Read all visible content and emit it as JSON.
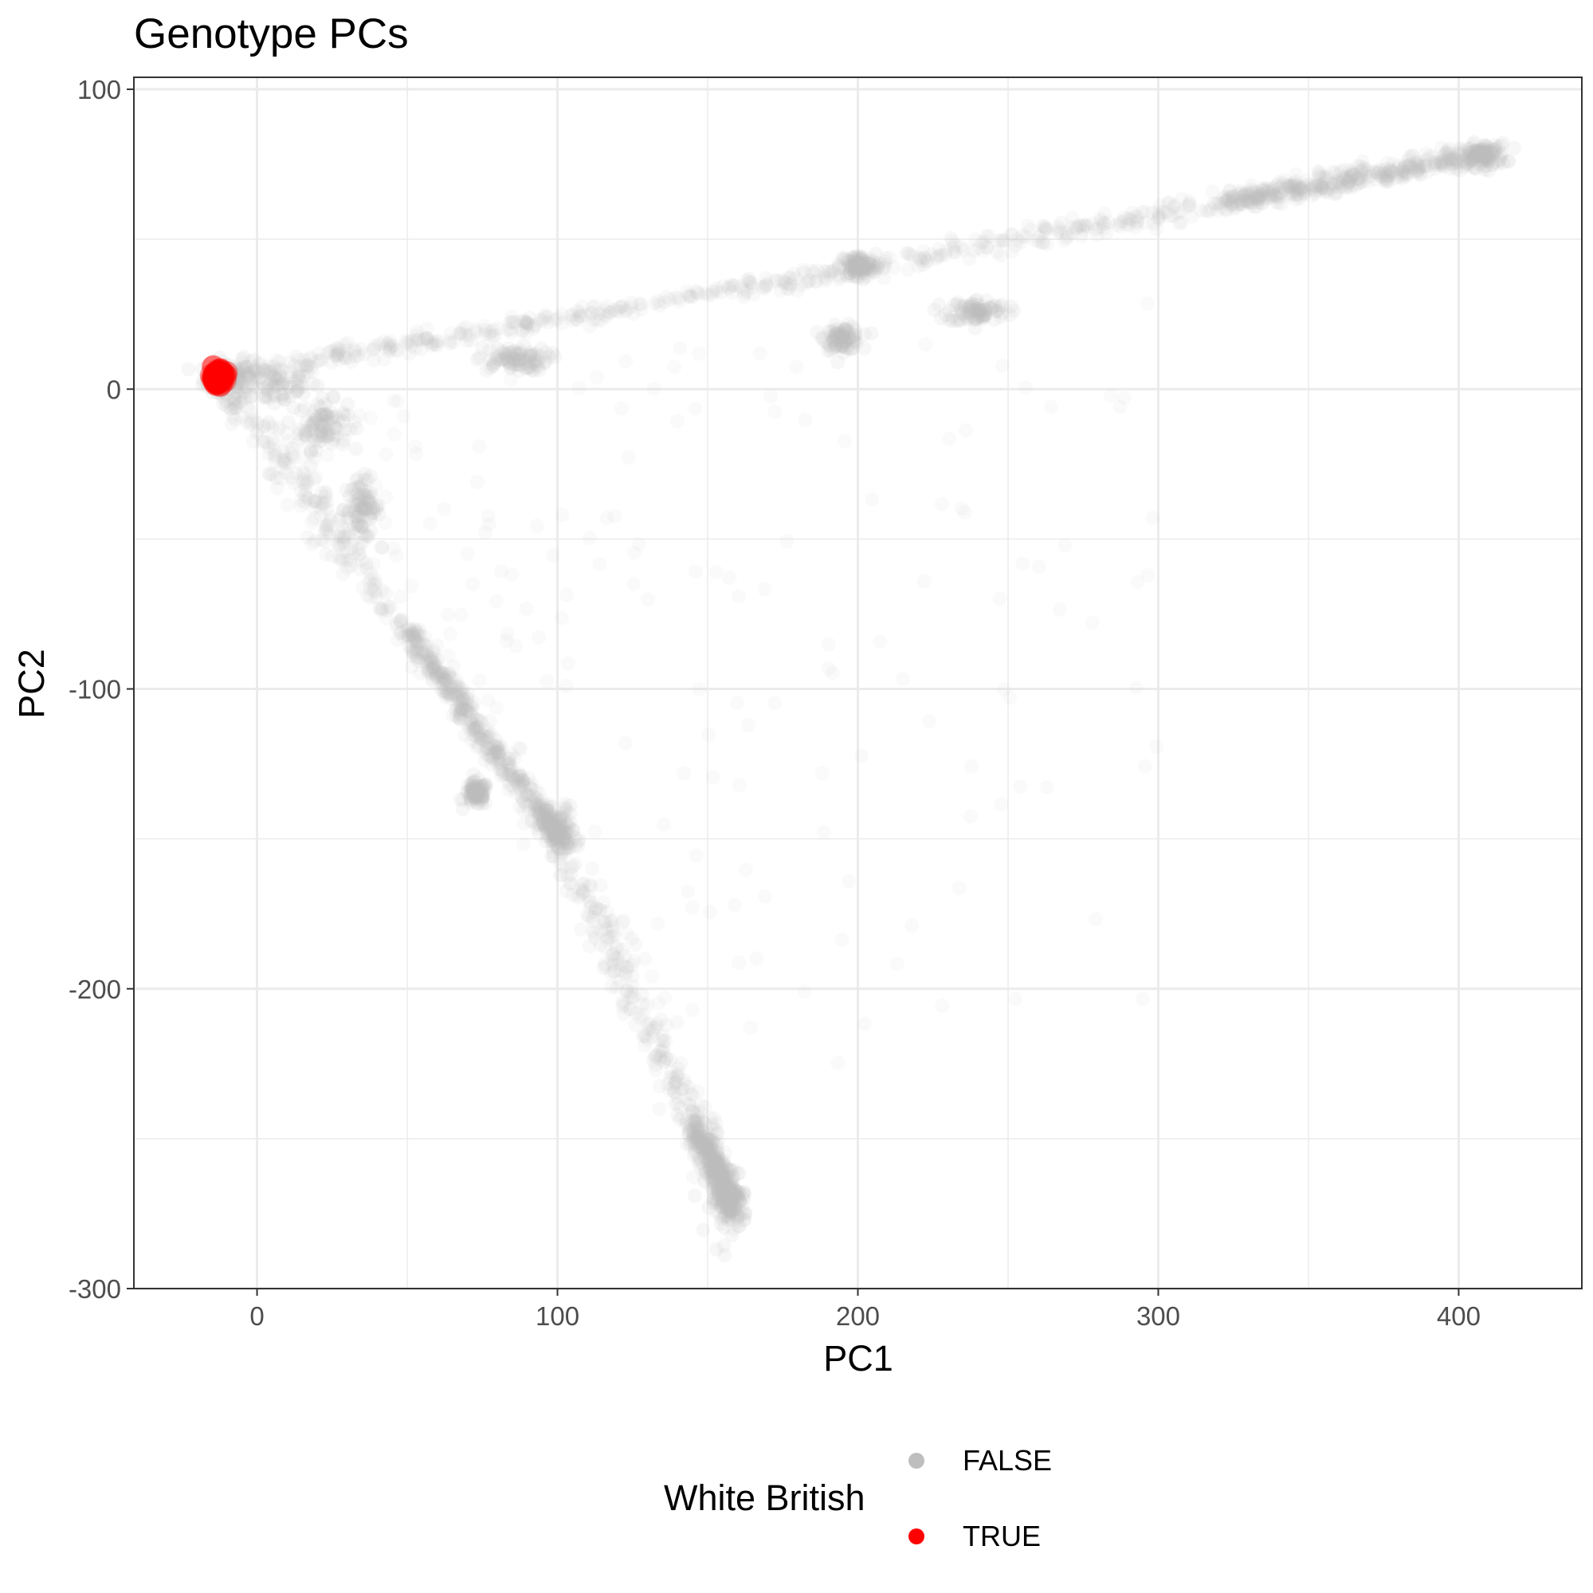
{
  "chart_data": {
    "type": "scatter",
    "title": "Genotype PCs",
    "xlabel": "PC1",
    "ylabel": "PC2",
    "xlim": [
      -41,
      441
    ],
    "ylim": [
      -300,
      104
    ],
    "xticks": [
      0,
      100,
      200,
      300,
      400
    ],
    "yticks": [
      100,
      0,
      -100,
      -200,
      -300
    ],
    "xtick_labels": [
      "0",
      "100",
      "200",
      "300",
      "400"
    ],
    "ytick_labels": [
      "100",
      "0",
      "-100",
      "-200",
      "-300"
    ],
    "minor_x": [
      50,
      150,
      250,
      350
    ],
    "minor_y": [
      50,
      -50,
      -150,
      -250
    ],
    "grid": true,
    "legend": {
      "title": "White British",
      "position": "bottom",
      "entries": [
        {
          "label": "FALSE",
          "color": "#bebebe"
        },
        {
          "label": "TRUE",
          "color": "#ff0000"
        }
      ]
    },
    "series": [
      {
        "name": "FALSE",
        "color": "#bebebe",
        "clusters": [
          {
            "x": -10,
            "y": 3,
            "sx": 4,
            "sy": 3
          },
          {
            "x": 5,
            "y": 2,
            "sx": 8,
            "sy": 4
          },
          {
            "x": 22,
            "y": -12,
            "sx": 4,
            "sy": 4
          },
          {
            "x": 35,
            "y": -40,
            "sx": 3,
            "sy": 5
          },
          {
            "x": 73,
            "y": -135,
            "sx": 2,
            "sy": 2
          },
          {
            "x": 195,
            "y": 17,
            "sx": 3,
            "sy": 2
          },
          {
            "x": 200,
            "y": 41,
            "sx": 3,
            "sy": 2
          },
          {
            "x": 240,
            "y": 26,
            "sx": 5,
            "sy": 2
          },
          {
            "x": 85,
            "y": 10,
            "sx": 6,
            "sy": 2
          },
          {
            "x": 100,
            "y": -147,
            "sx": 3,
            "sy": 4
          },
          {
            "x": 408,
            "y": 78,
            "sx": 4,
            "sy": 2
          },
          {
            "x": 157,
            "y": -270,
            "sx": 3,
            "sy": 6
          }
        ],
        "streaks": [
          {
            "from": [
              -12,
              2
            ],
            "to": [
              102,
              -152
            ],
            "spread": 2.5
          },
          {
            "from": [
              50,
              -80
            ],
            "to": [
              102,
              -152
            ],
            "spread": 1.5
          },
          {
            "from": [
              -10,
              5
            ],
            "to": [
              200,
              40
            ],
            "spread": 1.5
          },
          {
            "from": [
              200,
              40
            ],
            "to": [
              412,
              79
            ],
            "spread": 2
          },
          {
            "from": [
              320,
              62
            ],
            "to": [
              412,
              79
            ],
            "spread": 1.5
          },
          {
            "from": [
              95,
              -140
            ],
            "to": [
              160,
              -275
            ],
            "spread": 3
          },
          {
            "from": [
              145,
              -245
            ],
            "to": [
              160,
              -275
            ],
            "spread": 2
          }
        ],
        "scatter_region": {
          "x": [
            0,
            300
          ],
          "y": [
            -230,
            60
          ]
        }
      },
      {
        "name": "TRUE",
        "color": "#ff0000",
        "clusters": [
          {
            "x": -13,
            "y": 4,
            "sx": 1.2,
            "sy": 1.2
          }
        ]
      }
    ]
  }
}
